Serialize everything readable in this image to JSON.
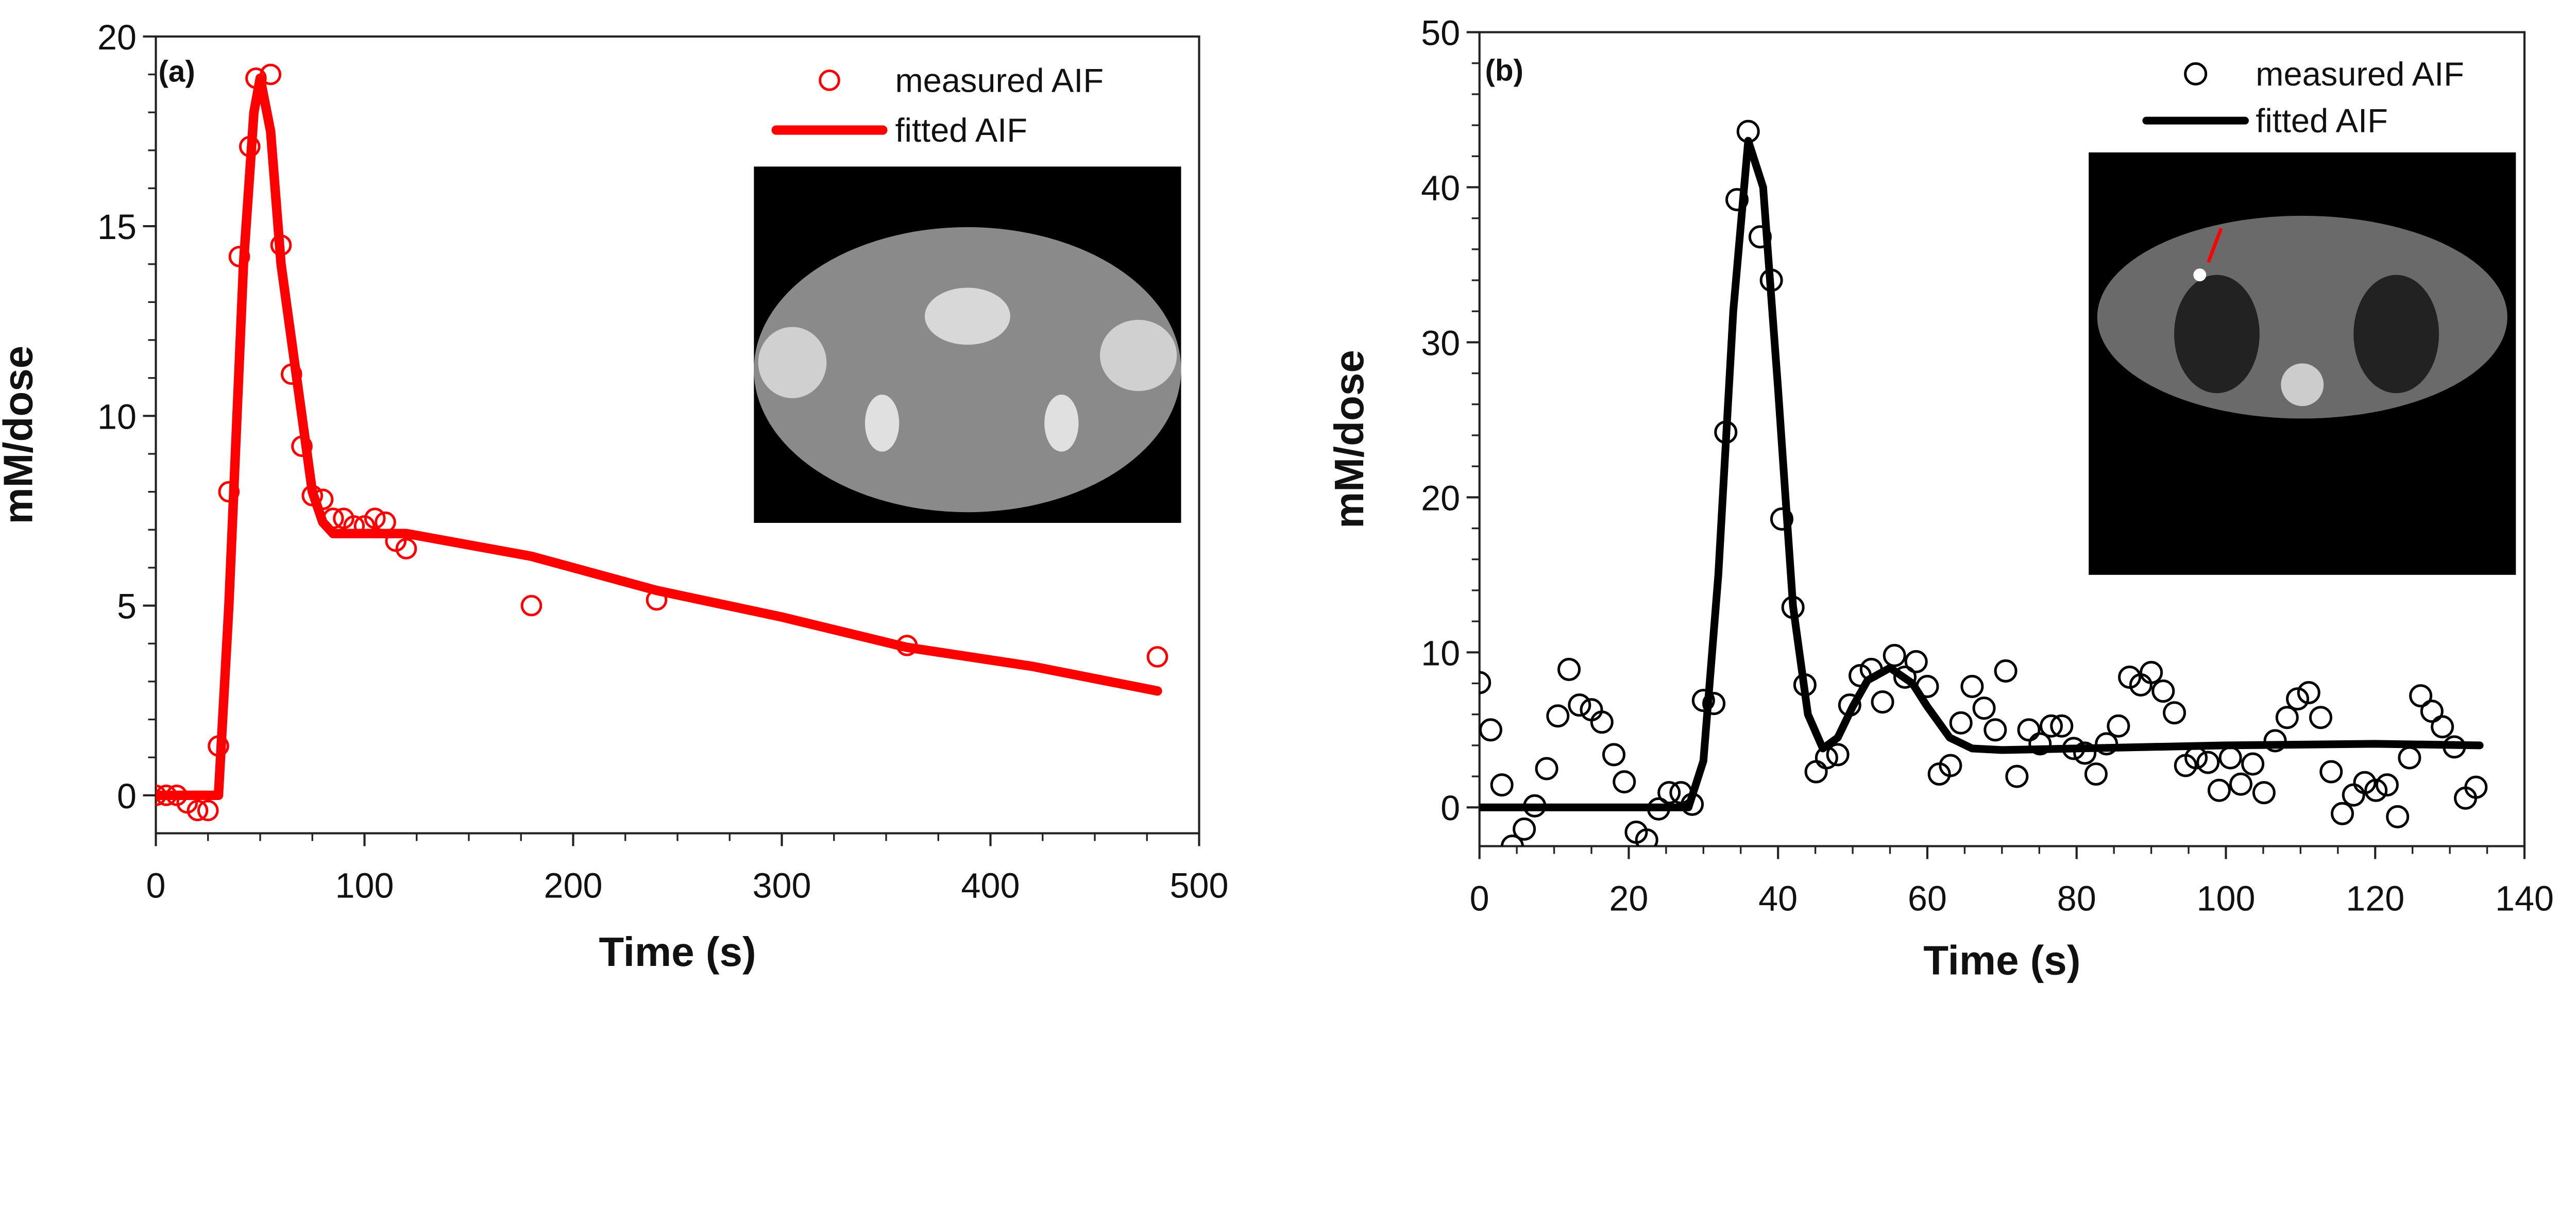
{
  "chart_data": [
    {
      "type": "scatter",
      "panel_label": "(a)",
      "xlabel": "Time (s)",
      "ylabel": "mM/dose",
      "xlim": [
        0,
        500
      ],
      "ylim": [
        -1,
        20
      ],
      "xticks": [
        0,
        100,
        200,
        300,
        400,
        500
      ],
      "yticks": [
        0,
        5,
        10,
        15,
        20
      ],
      "color": "#ff0000",
      "legend_position": "top-right",
      "series": [
        {
          "name": "measured AIF",
          "kind": "markers",
          "x": [
            0,
            5,
            10,
            15,
            20,
            25,
            30,
            35,
            40,
            45,
            48,
            55,
            60,
            65,
            70,
            75,
            80,
            85,
            90,
            95,
            100,
            105,
            110,
            115,
            120,
            180,
            240,
            360,
            480
          ],
          "y": [
            0,
            0,
            0,
            -0.2,
            -0.4,
            -0.4,
            1.3,
            8.0,
            14.2,
            17.1,
            18.9,
            19.0,
            14.5,
            11.1,
            9.2,
            7.9,
            7.8,
            7.3,
            7.3,
            7.1,
            7.1,
            7.3,
            7.2,
            6.7,
            6.5,
            5.0,
            5.15,
            3.95,
            3.65
          ]
        },
        {
          "name": "fitted AIF",
          "kind": "line",
          "x": [
            0,
            30,
            35,
            42,
            47,
            50,
            55,
            60,
            70,
            75,
            80,
            85,
            100,
            120,
            180,
            240,
            300,
            360,
            420,
            480
          ],
          "y": [
            0,
            0,
            5,
            14,
            18,
            18.9,
            17.5,
            14,
            10,
            8,
            7.2,
            6.9,
            6.9,
            6.9,
            6.3,
            5.4,
            4.7,
            3.9,
            3.4,
            2.75
          ]
        }
      ]
    },
    {
      "type": "scatter",
      "panel_label": "(b)",
      "xlabel": "Time (s)",
      "ylabel": "mM/dose",
      "xlim": [
        0,
        140
      ],
      "ylim": [
        -2.5,
        50
      ],
      "xticks": [
        0,
        20,
        40,
        60,
        80,
        100,
        120,
        140
      ],
      "yticks": [
        0,
        10,
        20,
        30,
        40,
        50
      ],
      "color": "#000000",
      "legend_position": "top-right",
      "series": [
        {
          "name": "measured AIF",
          "kind": "markers",
          "x": [
            0,
            1.5,
            3,
            4.4,
            6,
            7.4,
            9,
            10.5,
            12,
            13.4,
            15,
            16.4,
            18,
            19.4,
            21,
            22.4,
            24,
            25.4,
            27,
            28.5,
            30,
            31.4,
            33,
            34.5,
            36,
            37.6,
            39.1,
            40.5,
            42,
            43.6,
            45.1,
            46.5,
            48,
            49.6,
            51,
            52.5,
            54,
            55.6,
            57,
            58.5,
            60,
            61.6,
            63.1,
            64.5,
            66,
            67.6,
            69.1,
            70.5,
            72,
            73.6,
            75.1,
            76.6,
            78,
            79.6,
            81.1,
            82.6,
            84,
            85.6,
            87.1,
            88.6,
            90,
            91.6,
            93.1,
            94.6,
            96,
            97.6,
            99.1,
            100.6,
            102,
            103.6,
            105.1,
            106.6,
            108.2,
            109.6,
            111.1,
            112.7,
            114.1,
            115.6,
            117.1,
            118.6,
            120.1,
            121.6,
            123,
            124.6,
            126.1,
            127.6,
            129,
            130.6,
            132.1,
            133.5
          ],
          "y": [
            8.05,
            5.0,
            1.45,
            -2.5,
            -1.4,
            0.1,
            2.5,
            5.9,
            8.9,
            6.6,
            6.3,
            5.5,
            3.4,
            1.65,
            -1.6,
            -2.1,
            -0.1,
            0.95,
            0.95,
            0.2,
            6.9,
            6.7,
            24.2,
            39.2,
            43.6,
            36.8,
            34.0,
            18.6,
            12.9,
            7.9,
            2.3,
            3.2,
            3.4,
            6.6,
            8.5,
            8.9,
            6.8,
            9.8,
            8.4,
            9.4,
            7.8,
            2.15,
            2.7,
            5.45,
            7.8,
            6.4,
            5.0,
            8.8,
            2.0,
            5.0,
            4.1,
            5.25,
            5.25,
            3.8,
            3.5,
            2.15,
            4.1,
            5.25,
            8.4,
            7.9,
            8.7,
            7.5,
            6.1,
            2.7,
            3.2,
            2.9,
            1.1,
            3.2,
            1.5,
            2.8,
            0.95,
            4.3,
            5.8,
            7.0,
            7.4,
            5.8,
            2.3,
            -0.4,
            0.8,
            1.6,
            1.1,
            1.45,
            -0.6,
            3.2,
            7.2,
            6.2,
            5.2,
            3.9,
            0.6,
            1.3
          ]
        },
        {
          "name": "fitted AIF",
          "kind": "line",
          "x": [
            0,
            28,
            30,
            32,
            34,
            36,
            38,
            40,
            42,
            44,
            46,
            48,
            50,
            52,
            55,
            58,
            60,
            63,
            66,
            70,
            80,
            100,
            120,
            134
          ],
          "y": [
            0,
            0,
            3,
            15,
            32,
            43,
            40,
            27,
            13,
            6,
            3.8,
            4.5,
            6.5,
            8.2,
            9.0,
            8,
            6.5,
            4.5,
            3.8,
            3.7,
            3.8,
            4.0,
            4.1,
            4.0
          ]
        }
      ]
    }
  ]
}
